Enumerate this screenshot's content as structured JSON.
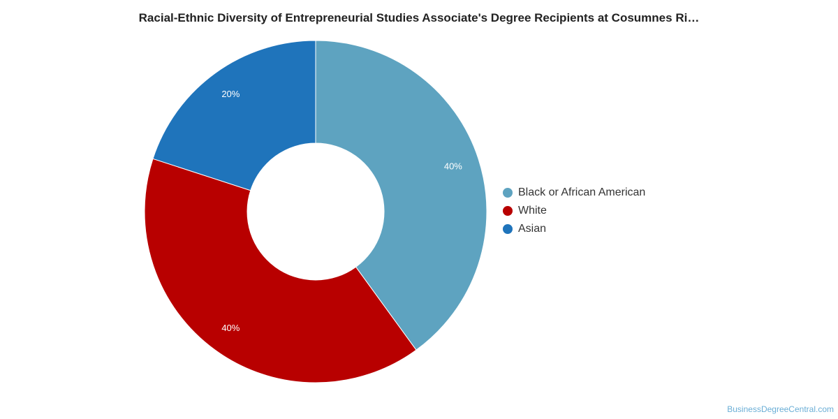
{
  "chart_data": {
    "type": "pie",
    "variant": "donut",
    "title": "Racial-Ethnic Diversity of Entrepreneurial Studies Associate's Degree Recipients at Cosumnes Ri…",
    "categories": [
      "Black or African American",
      "White",
      "Asian"
    ],
    "values": [
      40,
      40,
      20
    ],
    "labels": [
      "40%",
      "40%",
      "20%"
    ],
    "colors": [
      "#5ea3c0",
      "#b80000",
      "#1f74bb"
    ],
    "legend_position": "right"
  },
  "watermark": "BusinessDegreeCentral.com"
}
